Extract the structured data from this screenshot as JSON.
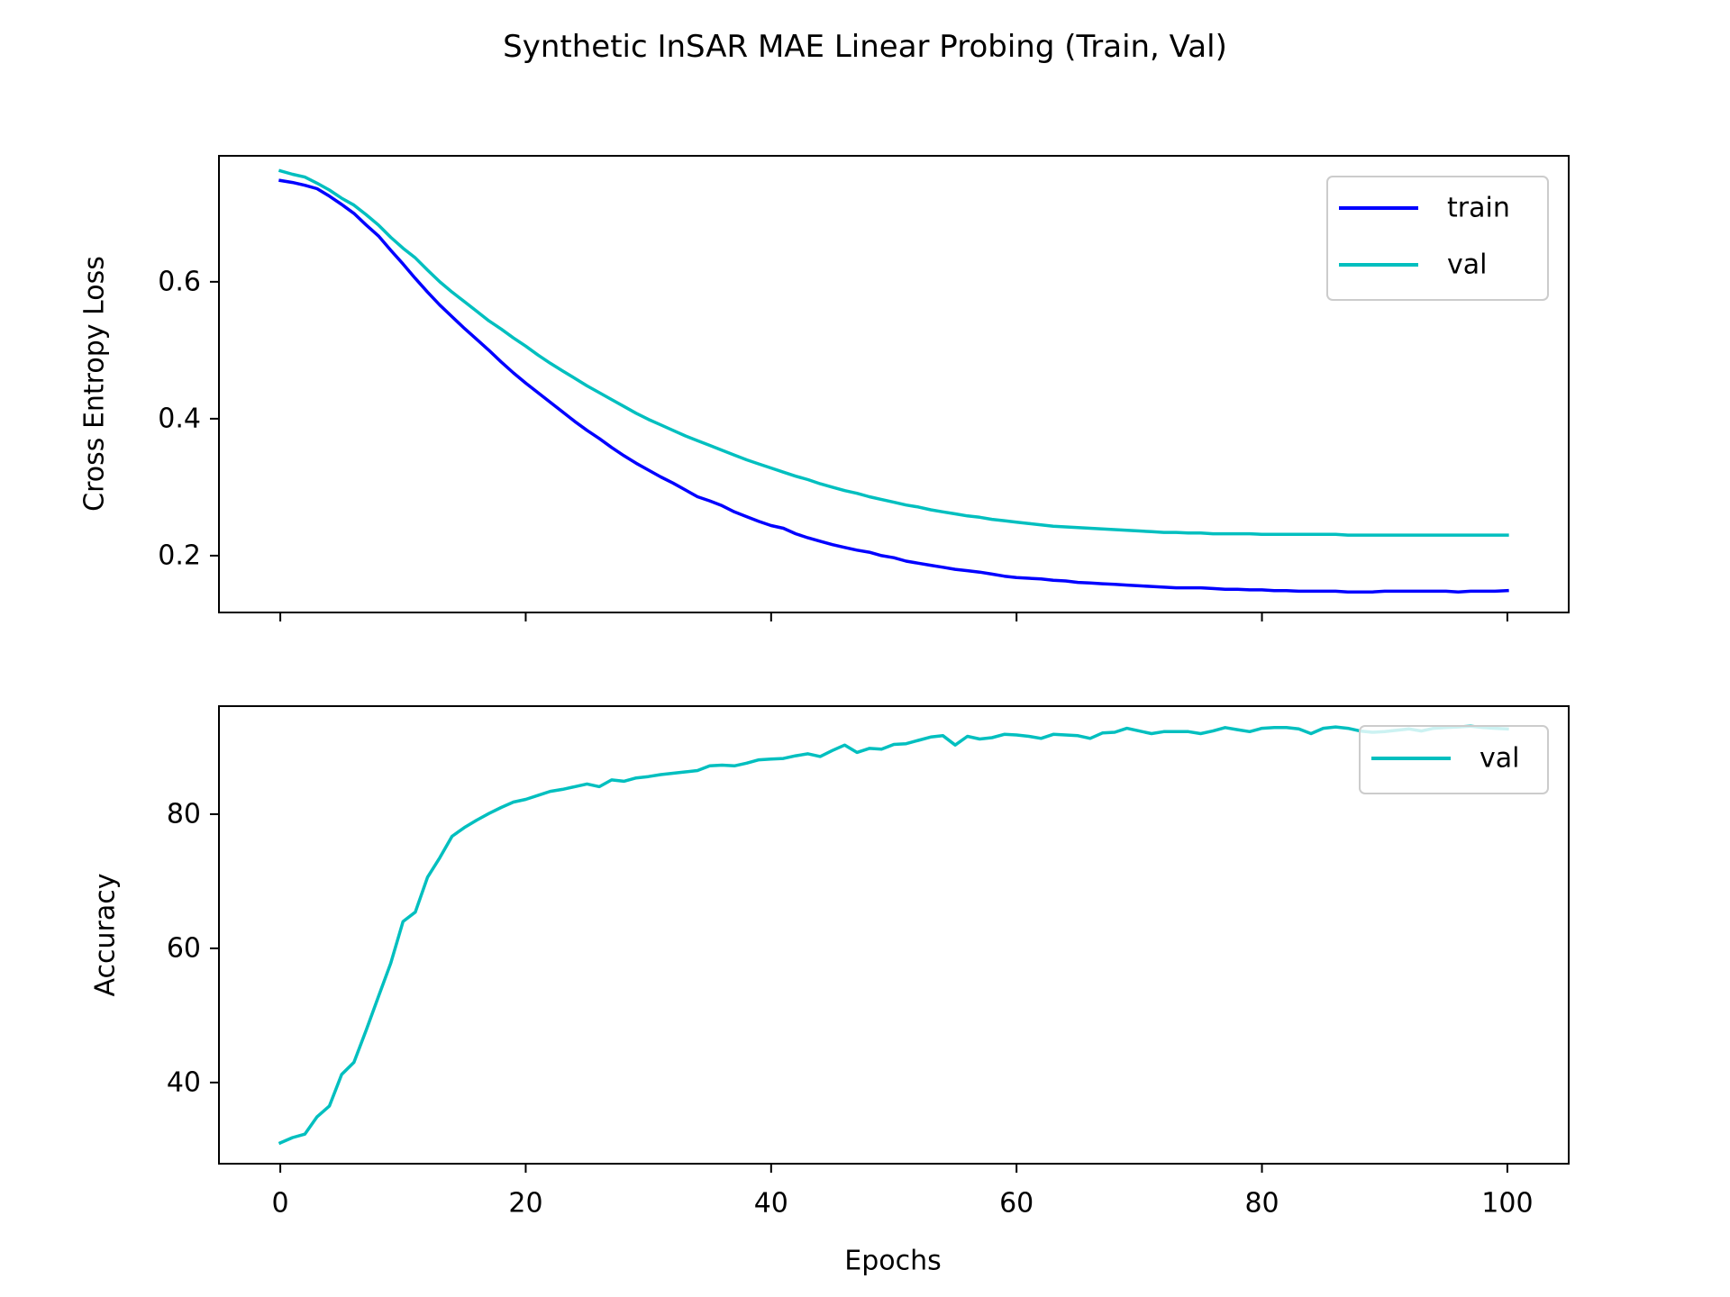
{
  "figure_title": "Synthetic InSAR MAE Linear Probing (Train, Val)",
  "chart_data": [
    {
      "type": "line",
      "title": "",
      "xlabel": "",
      "ylabel": "Cross Entropy Loss",
      "xlim": [
        -5,
        105
      ],
      "ylim": [
        0.117,
        0.784
      ],
      "xticks": [
        0,
        20,
        40,
        60,
        80,
        100
      ],
      "yticks": [
        0.2,
        0.4,
        0.6
      ],
      "ytick_labels": [
        "0.2",
        "0.4",
        "0.6"
      ],
      "grid": false,
      "legend": "top-right",
      "series": [
        {
          "name": "train",
          "color": "#0000ff",
          "x": [
            0,
            1,
            2,
            3,
            4,
            5,
            6,
            7,
            8,
            9,
            10,
            11,
            12,
            13,
            14,
            15,
            16,
            17,
            18,
            19,
            20,
            21,
            22,
            23,
            24,
            25,
            26,
            27,
            28,
            29,
            30,
            31,
            32,
            33,
            34,
            35,
            36,
            37,
            38,
            39,
            40,
            41,
            42,
            43,
            44,
            45,
            46,
            47,
            48,
            49,
            50,
            51,
            52,
            53,
            54,
            55,
            56,
            57,
            58,
            59,
            60,
            61,
            62,
            63,
            64,
            65,
            66,
            67,
            68,
            69,
            70,
            71,
            72,
            73,
            74,
            75,
            76,
            77,
            78,
            79,
            80,
            81,
            82,
            83,
            84,
            85,
            86,
            87,
            88,
            89,
            90,
            91,
            92,
            93,
            94,
            95,
            96,
            97,
            98,
            99,
            100
          ],
          "values": [
            0.748,
            0.745,
            0.741,
            0.736,
            0.725,
            0.713,
            0.7,
            0.683,
            0.667,
            0.646,
            0.626,
            0.605,
            0.585,
            0.566,
            0.549,
            0.532,
            0.516,
            0.5,
            0.483,
            0.467,
            0.452,
            0.438,
            0.424,
            0.41,
            0.396,
            0.383,
            0.371,
            0.358,
            0.346,
            0.335,
            0.325,
            0.315,
            0.306,
            0.296,
            0.286,
            0.28,
            0.273,
            0.264,
            0.257,
            0.25,
            0.244,
            0.24,
            0.232,
            0.226,
            0.221,
            0.216,
            0.212,
            0.208,
            0.205,
            0.2,
            0.197,
            0.192,
            0.189,
            0.186,
            0.183,
            0.18,
            0.178,
            0.176,
            0.173,
            0.17,
            0.168,
            0.167,
            0.166,
            0.164,
            0.163,
            0.161,
            0.16,
            0.159,
            0.158,
            0.157,
            0.156,
            0.155,
            0.154,
            0.153,
            0.153,
            0.153,
            0.152,
            0.151,
            0.151,
            0.15,
            0.15,
            0.149,
            0.149,
            0.148,
            0.148,
            0.148,
            0.148,
            0.147,
            0.147,
            0.147,
            0.148,
            0.148,
            0.148,
            0.148,
            0.148,
            0.148,
            0.147,
            0.148,
            0.148,
            0.148,
            0.149
          ]
        },
        {
          "name": "val",
          "color": "#00bfbf",
          "x": [
            0,
            1,
            2,
            3,
            4,
            5,
            6,
            7,
            8,
            9,
            10,
            11,
            12,
            13,
            14,
            15,
            16,
            17,
            18,
            19,
            20,
            21,
            22,
            23,
            24,
            25,
            26,
            27,
            28,
            29,
            30,
            31,
            32,
            33,
            34,
            35,
            36,
            37,
            38,
            39,
            40,
            41,
            42,
            43,
            44,
            45,
            46,
            47,
            48,
            49,
            50,
            51,
            52,
            53,
            54,
            55,
            56,
            57,
            58,
            59,
            60,
            61,
            62,
            63,
            64,
            65,
            66,
            67,
            68,
            69,
            70,
            71,
            72,
            73,
            74,
            75,
            76,
            77,
            78,
            79,
            80,
            81,
            82,
            83,
            84,
            85,
            86,
            87,
            88,
            89,
            90,
            91,
            92,
            93,
            94,
            95,
            96,
            97,
            98,
            99,
            100
          ],
          "values": [
            0.762,
            0.757,
            0.753,
            0.744,
            0.734,
            0.722,
            0.712,
            0.698,
            0.683,
            0.665,
            0.649,
            0.635,
            0.617,
            0.6,
            0.585,
            0.571,
            0.557,
            0.543,
            0.531,
            0.518,
            0.506,
            0.493,
            0.481,
            0.47,
            0.459,
            0.448,
            0.438,
            0.428,
            0.418,
            0.408,
            0.399,
            0.391,
            0.383,
            0.375,
            0.368,
            0.361,
            0.354,
            0.347,
            0.34,
            0.334,
            0.328,
            0.322,
            0.316,
            0.311,
            0.305,
            0.3,
            0.295,
            0.291,
            0.286,
            0.282,
            0.278,
            0.274,
            0.271,
            0.267,
            0.264,
            0.261,
            0.258,
            0.256,
            0.253,
            0.251,
            0.249,
            0.247,
            0.245,
            0.243,
            0.242,
            0.241,
            0.24,
            0.239,
            0.238,
            0.237,
            0.236,
            0.235,
            0.234,
            0.234,
            0.233,
            0.233,
            0.232,
            0.232,
            0.232,
            0.232,
            0.231,
            0.231,
            0.231,
            0.231,
            0.231,
            0.231,
            0.231,
            0.23,
            0.23,
            0.23,
            0.23,
            0.23,
            0.23,
            0.23,
            0.23,
            0.23,
            0.23,
            0.23,
            0.23,
            0.23,
            0.23
          ]
        }
      ]
    },
    {
      "type": "line",
      "title": "",
      "xlabel": "Epochs",
      "ylabel": "Accuracy",
      "xlim": [
        -5,
        105
      ],
      "ylim": [
        27.9,
        96.1
      ],
      "xticks": [
        0,
        20,
        40,
        60,
        80,
        100
      ],
      "yticks": [
        40,
        60,
        80
      ],
      "ytick_labels": [
        "40",
        "60",
        "80"
      ],
      "grid": false,
      "legend": "top-right",
      "series": [
        {
          "name": "val",
          "color": "#00bfbf",
          "x": [
            0,
            1,
            2,
            3,
            4,
            5,
            6,
            7,
            8,
            9,
            10,
            11,
            12,
            13,
            14,
            15,
            16,
            17,
            18,
            19,
            20,
            21,
            22,
            23,
            24,
            25,
            26,
            27,
            28,
            29,
            30,
            31,
            32,
            33,
            34,
            35,
            36,
            37,
            38,
            39,
            40,
            41,
            42,
            43,
            44,
            45,
            46,
            47,
            48,
            49,
            50,
            51,
            52,
            53,
            54,
            55,
            56,
            57,
            58,
            59,
            60,
            61,
            62,
            63,
            64,
            65,
            66,
            67,
            68,
            69,
            70,
            71,
            72,
            73,
            74,
            75,
            76,
            77,
            78,
            79,
            80,
            81,
            82,
            83,
            84,
            85,
            86,
            87,
            88,
            89,
            90,
            91,
            92,
            93,
            94,
            95,
            96,
            97,
            98,
            99,
            100
          ],
          "values": [
            31,
            31.8,
            32.3,
            34.9,
            36.5,
            41.2,
            43,
            47.8,
            52.8,
            57.8,
            64,
            65.4,
            70.6,
            73.5,
            76.7,
            78,
            79.1,
            80.1,
            81,
            81.8,
            82.2,
            82.8,
            83.4,
            83.7,
            84.1,
            84.5,
            84.1,
            85.1,
            84.9,
            85.4,
            85.6,
            85.9,
            86.1,
            86.3,
            86.5,
            87.2,
            87.3,
            87.2,
            87.6,
            88.1,
            88.2,
            88.3,
            88.7,
            89,
            88.6,
            89.5,
            90.3,
            89.2,
            89.8,
            89.7,
            90.4,
            90.5,
            91,
            91.5,
            91.7,
            90.3,
            91.6,
            91.2,
            91.4,
            91.9,
            91.8,
            91.6,
            91.3,
            91.9,
            91.8,
            91.7,
            91.3,
            92.1,
            92.2,
            92.8,
            92.4,
            92,
            92.3,
            92.3,
            92.3,
            92,
            92.4,
            92.9,
            92.6,
            92.3,
            92.8,
            92.9,
            92.9,
            92.7,
            92,
            92.8,
            93,
            92.8,
            92.4,
            92.2,
            92.3,
            92.5,
            92.7,
            92.4,
            92.8,
            92.9,
            93,
            93.1,
            92.9,
            92.8,
            92.7
          ]
        }
      ]
    }
  ]
}
